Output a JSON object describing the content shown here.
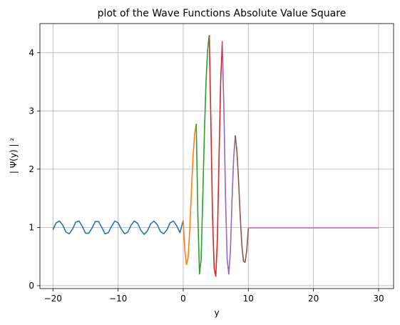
{
  "chart_data": {
    "type": "line",
    "title": "plot of the Wave Functions Absolute Value Square",
    "xlabel": "y",
    "ylabel": "| Ψ(y) | ²",
    "xlim": [
      -22,
      32.3
    ],
    "ylim": [
      -0.05,
      4.5
    ],
    "xticks": [
      -20,
      -10,
      0,
      10,
      20,
      30
    ],
    "yticks": [
      0,
      1,
      2,
      3,
      4
    ],
    "xtick_labels": [
      "−20",
      "−10",
      "0",
      "10",
      "20",
      "30"
    ],
    "ytick_labels": [
      "0",
      "1",
      "2",
      "3",
      "4"
    ],
    "grid": true,
    "legend": "none",
    "series": [
      {
        "color": "#1f77b4",
        "x": [
          -20,
          -19.5,
          -19,
          -18.5,
          -18,
          -17.5,
          -17,
          -16.5,
          -16,
          -15.5,
          -15,
          -14.5,
          -14,
          -13.5,
          -13,
          -12.5,
          -12,
          -11.5,
          -11,
          -10.5,
          -10,
          -9.5,
          -9,
          -8.5,
          -8,
          -7.5,
          -7,
          -6.5,
          -6,
          -5.5,
          -5,
          -4.5,
          -4,
          -3.5,
          -3,
          -2.5,
          -2,
          -1.5,
          -1,
          -0.5,
          0
        ],
        "y": [
          0.96,
          1.08,
          1.11,
          1.04,
          0.92,
          0.89,
          0.97,
          1.09,
          1.11,
          1.02,
          0.9,
          0.9,
          0.99,
          1.1,
          1.1,
          1.0,
          0.89,
          0.91,
          1.02,
          1.11,
          1.08,
          0.97,
          0.89,
          0.92,
          1.04,
          1.11,
          1.07,
          0.95,
          0.88,
          0.94,
          1.06,
          1.11,
          1.05,
          0.93,
          0.89,
          0.96,
          1.08,
          1.11,
          1.03,
          0.91,
          1.12
        ]
      },
      {
        "color": "#ff7f0e",
        "x": [
          0,
          0.25,
          0.5,
          0.75,
          1.0,
          1.25,
          1.5,
          1.75,
          2.0
        ],
        "y": [
          1.12,
          0.6,
          0.36,
          0.48,
          0.95,
          1.6,
          2.2,
          2.6,
          2.78
        ]
      },
      {
        "color": "#2ca02c",
        "x": [
          2.0,
          2.25,
          2.5,
          2.75,
          3.0,
          3.25,
          3.5,
          3.75,
          4.0
        ],
        "y": [
          2.78,
          1.2,
          0.2,
          0.45,
          1.5,
          2.6,
          3.5,
          4.05,
          4.3
        ]
      },
      {
        "color": "#d62728",
        "x": [
          4.0,
          4.25,
          4.5,
          4.75,
          5.0,
          5.25,
          5.5,
          5.75,
          6.0
        ],
        "y": [
          4.3,
          2.8,
          1.2,
          0.3,
          0.16,
          0.8,
          2.2,
          3.5,
          4.2
        ]
      },
      {
        "color": "#9467bd",
        "x": [
          6.0,
          6.25,
          6.5,
          6.75,
          7.0,
          7.25,
          7.5,
          7.75,
          8.0
        ],
        "y": [
          4.2,
          3.0,
          1.5,
          0.45,
          0.2,
          0.6,
          1.5,
          2.2,
          2.58
        ]
      },
      {
        "color": "#8c564b",
        "x": [
          8.0,
          8.25,
          8.5,
          8.75,
          9.0,
          9.25,
          9.5,
          9.75,
          10.0
        ],
        "y": [
          2.58,
          2.3,
          1.8,
          1.2,
          0.7,
          0.42,
          0.4,
          0.6,
          0.99
        ]
      },
      {
        "color": "#e377c2",
        "x": [
          10,
          15,
          20,
          25,
          30
        ],
        "y": [
          0.99,
          0.99,
          0.99,
          0.99,
          0.99
        ]
      }
    ]
  }
}
